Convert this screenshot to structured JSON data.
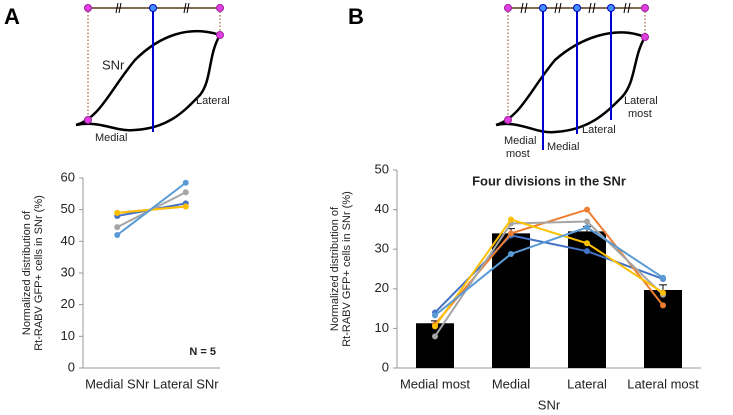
{
  "panels": [
    {
      "label": "A",
      "diagram": {
        "labels": [
          [
            "SNr"
          ],
          [
            "Lateral"
          ],
          [
            "Medial"
          ]
        ]
      }
    },
    {
      "label": "B",
      "diagram": {
        "labels": [
          [
            "Medial",
            "most"
          ],
          [
            "Medial"
          ],
          [
            "Lateral"
          ],
          [
            "Lateral",
            "most"
          ]
        ]
      }
    }
  ],
  "chart_data": [
    {
      "type": "line",
      "y_label": [
        "Normalized distribution of",
        "Rt-RABV GFP+ cells in SNr (%)"
      ],
      "categories": [
        "Medial SNr",
        "Lateral SNr"
      ],
      "series": [
        {
          "color": "#4472c4",
          "values": [
            48,
            52
          ]
        },
        {
          "color": "#ed7d31",
          "values": [
            49,
            51
          ]
        },
        {
          "color": "#a5a5a5",
          "values": [
            44.5,
            55.5
          ]
        },
        {
          "color": "#ffc000",
          "values": [
            49,
            51
          ]
        },
        {
          "color": "#5b9bd5",
          "values": [
            42,
            58.5
          ]
        }
      ],
      "annotation": "N = 5",
      "ylim": [
        0,
        60
      ],
      "yticks": [
        0,
        10,
        20,
        30,
        40,
        50,
        60
      ]
    },
    {
      "type": "bar",
      "title": "Four divisions in the SNr",
      "x_label": "SNr",
      "y_label": [
        "Normalized distribution of",
        "Rt-RABV GFP+ cells in SNr (%)"
      ],
      "categories": [
        "Medial most",
        "Medial",
        "Lateral",
        "Lateral most"
      ],
      "values": [
        11.3,
        34,
        34.5,
        19.7
      ],
      "errors": [
        0.6,
        1.2,
        1.2,
        1.3
      ],
      "color": "#000000",
      "series": [
        {
          "color": "#4472c4",
          "values": [
            14,
            33.5,
            29.5,
            22.5
          ]
        },
        {
          "color": "#ed7d31",
          "values": [
            11,
            34,
            40,
            15.8
          ]
        },
        {
          "color": "#a5a5a5",
          "values": [
            8,
            36.5,
            37,
            18.5
          ]
        },
        {
          "color": "#ffc000",
          "values": [
            10.5,
            37.5,
            31.5,
            19
          ]
        },
        {
          "color": "#5b9bd5",
          "values": [
            13.3,
            28.8,
            35.5,
            22.8
          ]
        }
      ],
      "ylim": [
        0,
        50
      ],
      "yticks": [
        0,
        10,
        20,
        30,
        40,
        50
      ]
    }
  ]
}
